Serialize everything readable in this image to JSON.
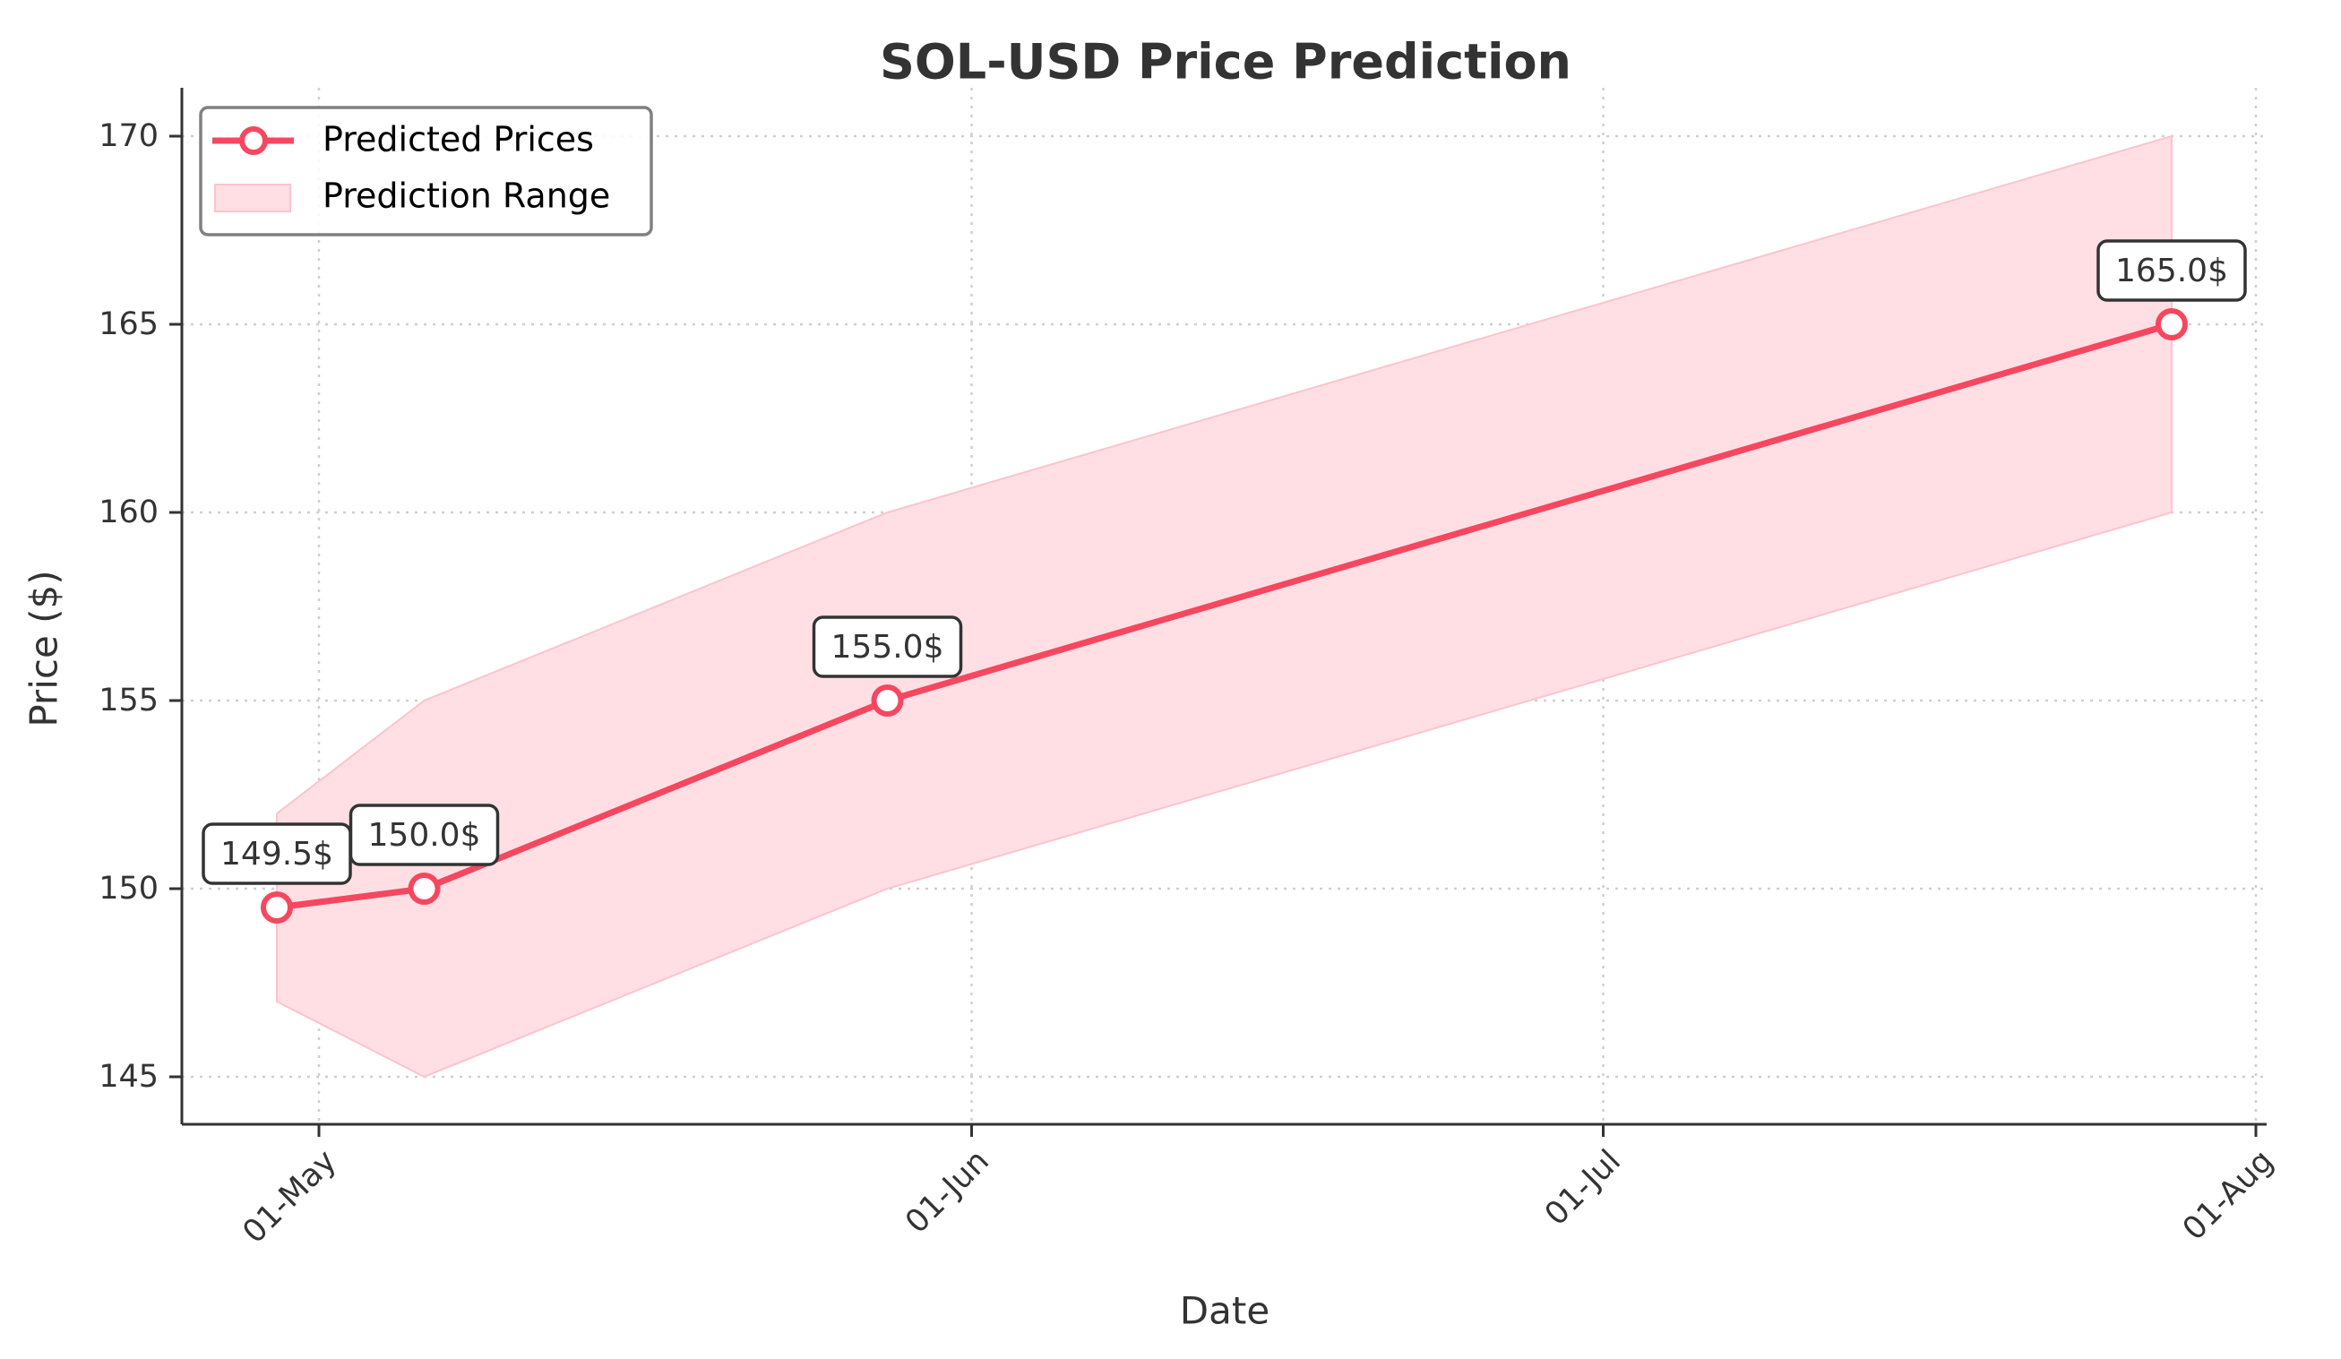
{
  "chart_data": {
    "type": "line",
    "title": "SOL-USD Price Prediction",
    "xlabel": "Date",
    "ylabel": "Price ($)",
    "x_ticks": [
      "01-May",
      "01-Jun",
      "01-Jul",
      "01-Aug"
    ],
    "y_ticks": [
      145,
      150,
      155,
      160,
      165,
      170
    ],
    "ylim": [
      143.7,
      171.3
    ],
    "grid": true,
    "legend_position": "upper left",
    "x": [
      "Apr-29",
      "May-06",
      "May-28",
      "Jul-28"
    ],
    "series": [
      {
        "name": "Predicted Prices",
        "values": [
          149.5,
          150.0,
          155.0,
          165.0
        ],
        "color": "#f5475f",
        "marker": "circle-hollow"
      },
      {
        "name": "Prediction Range",
        "type": "area",
        "lower": [
          147.0,
          145.0,
          150.0,
          160.0
        ],
        "upper": [
          152.0,
          155.0,
          160.0,
          170.0
        ],
        "color": "#ffdfe4"
      }
    ],
    "annotations": [
      "149.5$",
      "150.0$",
      "155.0$",
      "165.0$"
    ]
  },
  "legend": {
    "items": [
      {
        "label": "Predicted Prices"
      },
      {
        "label": "Prediction Range"
      }
    ]
  },
  "colors": {
    "line": "#f5475f",
    "fill": "#ffdfe4",
    "fill_edge": "#fbc4ce",
    "text": "#333333"
  }
}
